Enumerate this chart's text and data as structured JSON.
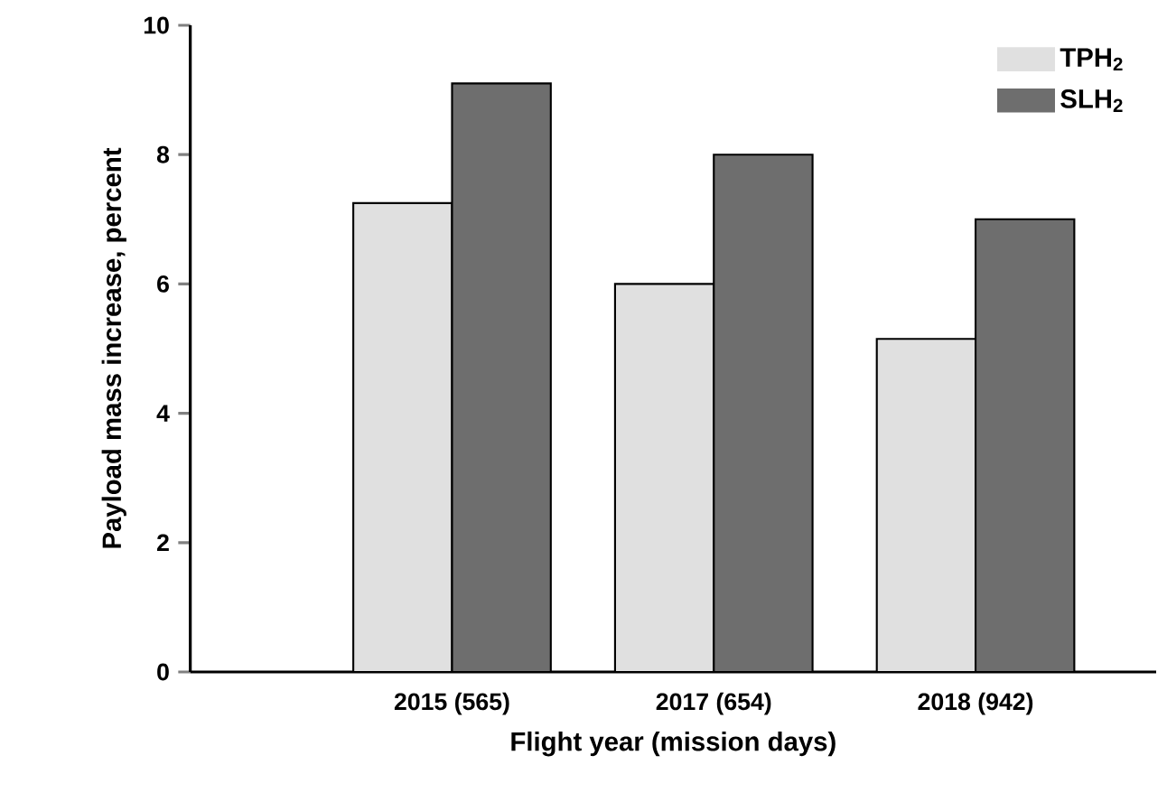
{
  "chart_data": {
    "type": "bar",
    "xlabel": "Flight year (mission days)",
    "ylabel": "Payload mass increase, percent",
    "categories": [
      "2015 (565)",
      "2017 (654)",
      "2018 (942)"
    ],
    "series": [
      {
        "name": "TPH$_{2}$",
        "color": "#e0e0e0",
        "values": [
          7.25,
          6.0,
          5.15
        ]
      },
      {
        "name": "SLH$_{2}$",
        "color": "#6e6e6e",
        "values": [
          9.1,
          8.0,
          7.0
        ]
      }
    ],
    "ylim": [
      0,
      10
    ],
    "yticks": [
      0,
      2,
      4,
      6,
      8,
      10
    ],
    "grid": false,
    "legend": "top right"
  }
}
